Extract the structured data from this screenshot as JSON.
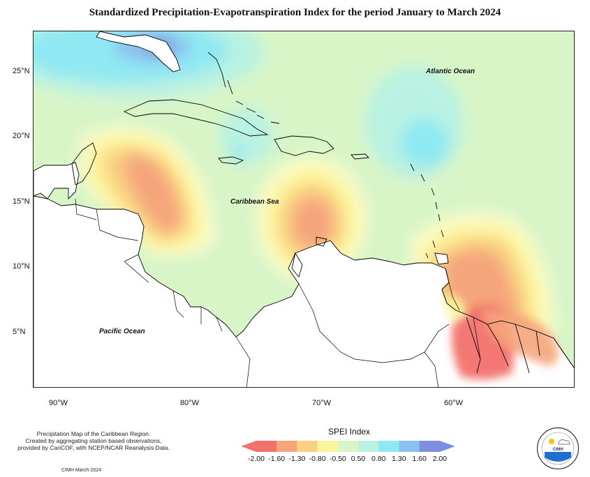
{
  "title": "Standardized Precipitation-Evapotranspiration Index for the period January to March 2024",
  "map": {
    "lat_labels": [
      {
        "label": "25°N",
        "lat": 25
      },
      {
        "label": "20°N",
        "lat": 20
      },
      {
        "label": "15°N",
        "lat": 15
      },
      {
        "label": "10°N",
        "lat": 10
      },
      {
        "label": "5°N",
        "lat": 5
      }
    ],
    "lon_labels": [
      {
        "label": "90°W",
        "lon": -90
      },
      {
        "label": "80°W",
        "lon": -80
      },
      {
        "label": "70°W",
        "lon": -70
      },
      {
        "label": "60°W",
        "lon": -60
      }
    ],
    "ocean_labels": {
      "atlantic": "Atlantic Ocean",
      "caribbean": "Caribbean Sea",
      "pacific": "Pacific Ocean"
    }
  },
  "legend": {
    "title": "SPEI Index",
    "ticks": [
      "-2.00",
      "-1.60",
      "-1.30",
      "-0.80",
      "-0.50",
      "0.50",
      "0.80",
      "1.30",
      "1.60",
      "2.00"
    ],
    "colors": [
      "#f2716b",
      "#f5a57c",
      "#f9d183",
      "#fbf59a",
      "#fdfbc8",
      "#d8f5c8",
      "#b9f2e3",
      "#8fe8f2",
      "#8cc0f0",
      "#7d8ee0"
    ]
  },
  "footnote": {
    "line1": "Precipitation Map of the Caribbean Region.",
    "line2": "Created by aggregating station based observations,",
    "line3": "provided by CariCOF, with NCEP/NCAR Reanalysis Data."
  },
  "credit": "CIMH March-2024",
  "logo": {
    "text": "CIMH",
    "icon": "cimh-logo-icon"
  }
}
